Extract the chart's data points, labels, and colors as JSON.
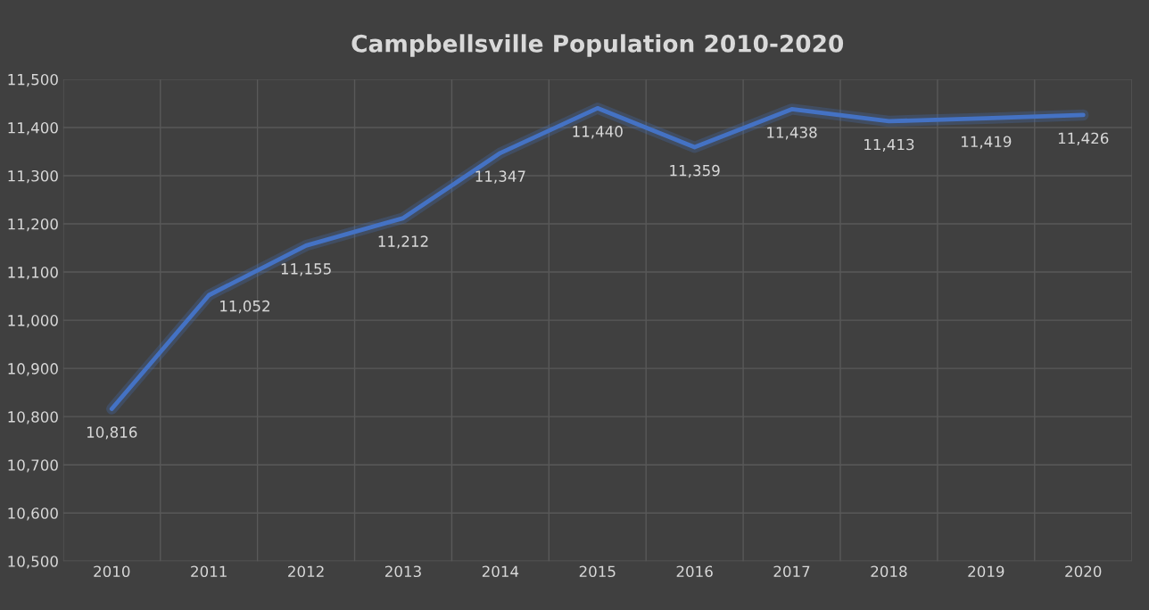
{
  "chart_data": {
    "type": "line",
    "title": "Campbellsville Population 2010-2020",
    "categories": [
      "2010",
      "2011",
      "2012",
      "2013",
      "2014",
      "2015",
      "2016",
      "2017",
      "2018",
      "2019",
      "2020"
    ],
    "values": [
      10816,
      11052,
      11155,
      11212,
      11347,
      11440,
      11359,
      11438,
      11413,
      11419,
      11426
    ],
    "value_labels": [
      "10,816",
      "11,052",
      "11,155",
      "11,212",
      "11,347",
      "11,440",
      "11,359",
      "11,438",
      "11,413",
      "11,419",
      "11,426"
    ],
    "color": "#4472c4",
    "ylim": [
      10500,
      11500
    ],
    "yticks": [
      {
        "value": 10500,
        "label": "10,500"
      },
      {
        "value": 10600,
        "label": "10,600"
      },
      {
        "value": 10700,
        "label": "10,700"
      },
      {
        "value": 10800,
        "label": "10,800"
      },
      {
        "value": 10900,
        "label": "10,900"
      },
      {
        "value": 11000,
        "label": "11,000"
      },
      {
        "value": 11100,
        "label": "11,100"
      },
      {
        "value": 11200,
        "label": "11,200"
      },
      {
        "value": 11300,
        "label": "11,300"
      },
      {
        "value": 11400,
        "label": "11,400"
      },
      {
        "value": 11500,
        "label": "11,500"
      }
    ],
    "grid": true,
    "marker": "none",
    "line_style": "solid"
  }
}
